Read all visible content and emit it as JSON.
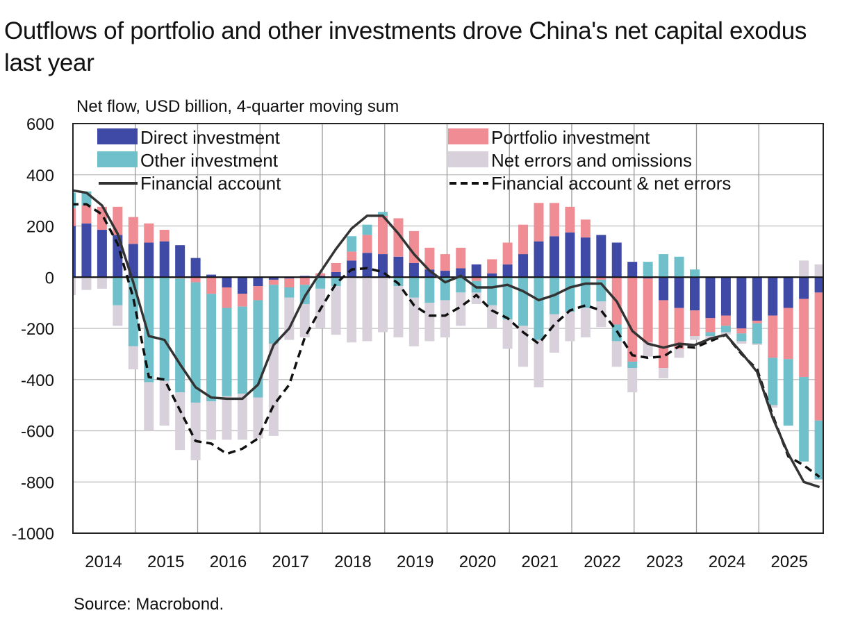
{
  "title": "Outflows of portfolio and other investments drove China's net capital exodus last year",
  "subtitle": "Net flow, USD billion, 4-quarter moving sum",
  "source": "Source: Macrobond.",
  "chart_data": {
    "type": "bar",
    "stacked": true,
    "title": "Outflows of portfolio and other investments drove China's net capital exodus last year",
    "ylabel": "Net flow, USD billion, 4-quarter moving sum",
    "xlabel": "",
    "ylim": [
      -1000,
      600
    ],
    "yticks": [
      600,
      400,
      200,
      0,
      -200,
      -400,
      -600,
      -800,
      -1000
    ],
    "xticks": [
      "2014",
      "2015",
      "2016",
      "2017",
      "2018",
      "2019",
      "2020",
      "2021",
      "2022",
      "2023",
      "2024",
      "2025"
    ],
    "grid": true,
    "legend_position": "top",
    "colors": {
      "direct": "#3f4aa6",
      "portfolio": "#f08c93",
      "other": "#6fc0ca",
      "errors": "#d8d0da",
      "fa": "#333333",
      "fane": "#111111"
    },
    "legend": [
      {
        "key": "direct",
        "label": "Direct investment",
        "kind": "bar"
      },
      {
        "key": "portfolio",
        "label": "Portfolio investment",
        "kind": "bar"
      },
      {
        "key": "other",
        "label": "Other investment",
        "kind": "bar"
      },
      {
        "key": "errors",
        "label": "Net errors and omissions",
        "kind": "bar"
      },
      {
        "key": "fa",
        "label": "Financial account",
        "kind": "line"
      },
      {
        "key": "fane",
        "label": "Financial account & net errors",
        "kind": "dash"
      }
    ],
    "x": [
      "2013Q4",
      "2014Q1",
      "2014Q2",
      "2014Q3",
      "2014Q4",
      "2015Q1",
      "2015Q2",
      "2015Q3",
      "2015Q4",
      "2016Q1",
      "2016Q2",
      "2016Q3",
      "2016Q4",
      "2017Q1",
      "2017Q2",
      "2017Q3",
      "2017Q4",
      "2018Q1",
      "2018Q2",
      "2018Q3",
      "2018Q4",
      "2019Q1",
      "2019Q2",
      "2019Q3",
      "2019Q4",
      "2020Q1",
      "2020Q2",
      "2020Q3",
      "2020Q4",
      "2021Q1",
      "2021Q2",
      "2021Q3",
      "2021Q4",
      "2022Q1",
      "2022Q2",
      "2022Q3",
      "2022Q4",
      "2023Q1",
      "2023Q2",
      "2023Q3",
      "2023Q4",
      "2024Q1",
      "2024Q2",
      "2024Q3",
      "2024Q4",
      "2025Q1",
      "2025Q2",
      "2025Q3",
      "2025Q4"
    ],
    "series": [
      {
        "name": "Direct investment",
        "key": "direct",
        "values": [
          200,
          210,
          185,
          165,
          130,
          135,
          140,
          125,
          75,
          10,
          -40,
          -65,
          -35,
          -10,
          -5,
          5,
          5,
          20,
          65,
          95,
          90,
          80,
          55,
          30,
          25,
          35,
          50,
          15,
          50,
          90,
          140,
          160,
          175,
          155,
          165,
          135,
          60,
          -5,
          -90,
          -120,
          -130,
          -160,
          -150,
          -200,
          -170,
          -150,
          -120,
          -85,
          -60
        ]
      },
      {
        "name": "Portfolio investment",
        "key": "portfolio",
        "values": [
          70,
          70,
          90,
          110,
          105,
          75,
          45,
          -5,
          -20,
          -65,
          -80,
          -50,
          -55,
          -20,
          -35,
          -30,
          10,
          35,
          35,
          70,
          150,
          150,
          125,
          85,
          65,
          80,
          -15,
          55,
          85,
          115,
          150,
          130,
          100,
          70,
          -10,
          -185,
          -330,
          -250,
          -265,
          -160,
          -100,
          -55,
          -40,
          -20,
          -10,
          -165,
          -200,
          -305,
          -500
        ]
      },
      {
        "name": "Other investment",
        "key": "other",
        "values": [
          60,
          55,
          0,
          -110,
          -270,
          -410,
          -405,
          -445,
          -470,
          -420,
          -345,
          -340,
          -380,
          -230,
          -40,
          -75,
          -45,
          -35,
          60,
          40,
          15,
          -35,
          -80,
          -100,
          -90,
          -60,
          -45,
          -110,
          -165,
          -190,
          -245,
          -145,
          -135,
          -120,
          -85,
          -65,
          -25,
          60,
          90,
          80,
          30,
          -15,
          -25,
          -30,
          -80,
          -185,
          -260,
          -330,
          -230
        ]
      },
      {
        "name": "Net errors and omissions",
        "key": "errors",
        "values": [
          -70,
          -50,
          -45,
          -80,
          -90,
          -190,
          -175,
          -225,
          -225,
          -150,
          -170,
          -180,
          -160,
          -360,
          -165,
          -130,
          -155,
          -190,
          -255,
          -250,
          -215,
          -200,
          -190,
          -150,
          -145,
          -130,
          -45,
          -90,
          -115,
          -160,
          -185,
          -150,
          -115,
          -115,
          -100,
          -100,
          -95,
          -55,
          -40,
          -35,
          -15,
          -15,
          -10,
          -10,
          -5,
          -10,
          0,
          65,
          50
        ]
      },
      {
        "name": "Financial account",
        "key": "fa",
        "values": [
          340,
          330,
          280,
          170,
          -20,
          -230,
          -245,
          -340,
          -430,
          -470,
          -475,
          -475,
          -420,
          -265,
          -200,
          -75,
          20,
          110,
          190,
          240,
          240,
          170,
          90,
          25,
          -20,
          5,
          -40,
          -40,
          -30,
          -55,
          -90,
          -70,
          -40,
          -25,
          -25,
          -95,
          -210,
          -260,
          -275,
          -260,
          -265,
          -240,
          -225,
          -295,
          -370,
          -550,
          -690,
          -800,
          -820
        ]
      },
      {
        "name": "Financial account & net errors",
        "key": "fane",
        "values": [
          285,
          285,
          245,
          130,
          -80,
          -390,
          -400,
          -520,
          -640,
          -650,
          -690,
          -670,
          -630,
          -500,
          -420,
          -235,
          -125,
          -25,
          30,
          35,
          20,
          -25,
          -110,
          -150,
          -150,
          -115,
          -70,
          -130,
          -160,
          -215,
          -260,
          -185,
          -130,
          -110,
          -130,
          -210,
          -305,
          -315,
          -310,
          -270,
          -275,
          -250,
          -225,
          -300,
          -360,
          -540,
          -700,
          -735,
          -780
        ]
      }
    ]
  }
}
